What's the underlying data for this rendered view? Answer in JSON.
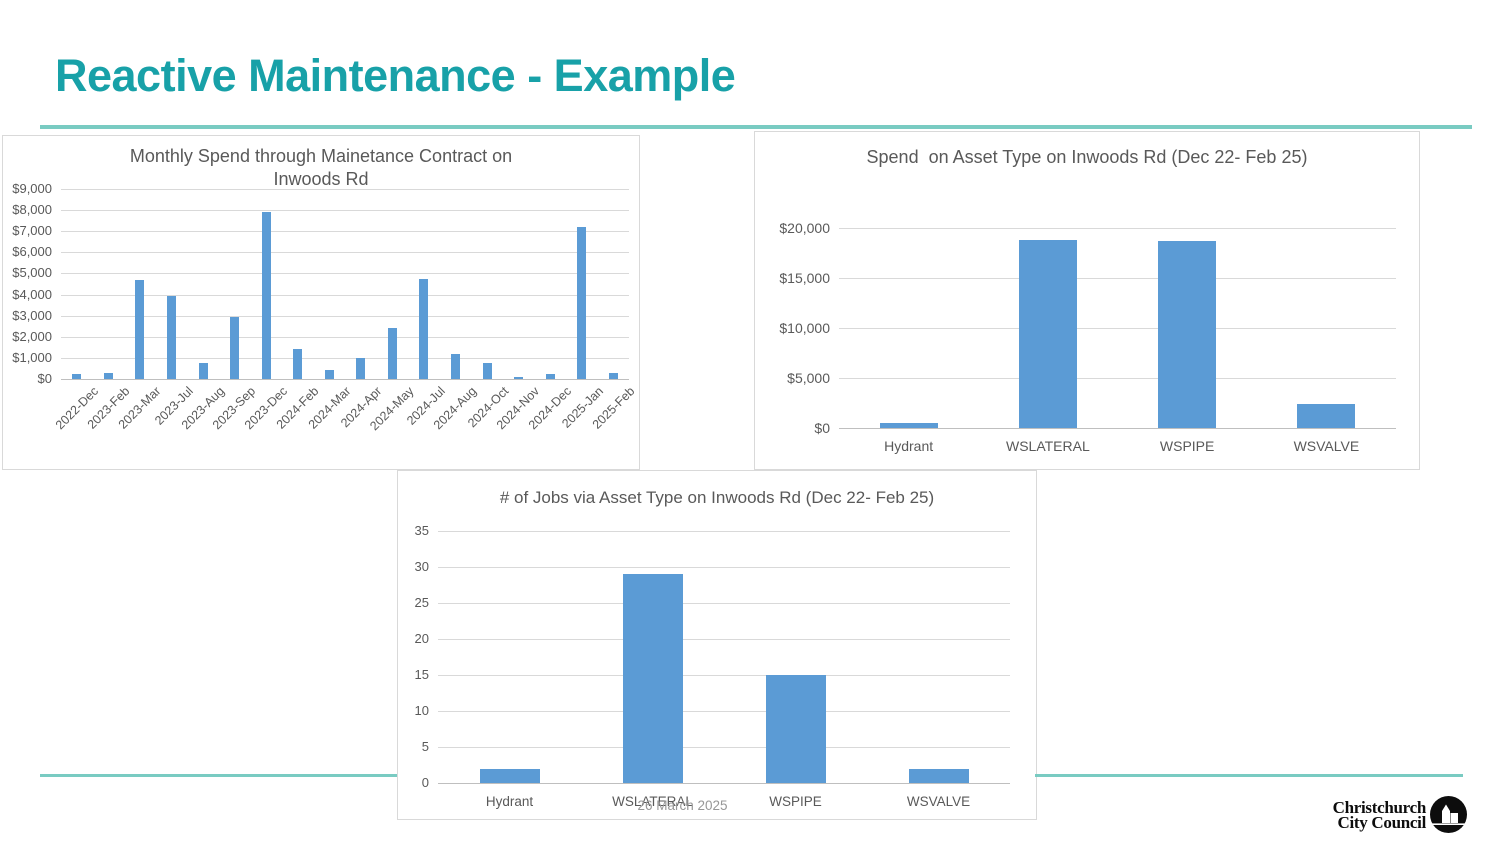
{
  "slide": {
    "title": "Reactive Maintenance - Example"
  },
  "footer": {
    "date": "26 March 2025"
  },
  "logo": {
    "line1": "Christchurch",
    "line2": "City Council"
  },
  "colors": {
    "accent_teal": "#18A1A8",
    "rule_teal": "#79CBC2",
    "bar_blue": "#5B9BD5",
    "chart_text": "#595959",
    "gridline": "#D9D9D9"
  },
  "chart_data": [
    {
      "type": "bar",
      "title": "Monthly Spend through Mainetance Contract on Inwoods Rd",
      "categories": [
        "2022-Dec",
        "2023-Feb",
        "2023-Mar",
        "2023-Jul",
        "2023-Aug",
        "2023-Sep",
        "2023-Dec",
        "2024-Feb",
        "2024-Mar",
        "2024-Apr",
        "2024-May",
        "2024-Jul",
        "2024-Aug",
        "2024-Oct",
        "2024-Nov",
        "2024-Dec",
        "2025-Jan",
        "2025-Feb"
      ],
      "values": [
        250,
        300,
        4700,
        3950,
        750,
        2950,
        7900,
        1400,
        450,
        1000,
        2400,
        4750,
        1200,
        750,
        100,
        250,
        7200,
        300
      ],
      "ymax": 9000,
      "yticks": [
        "$9,000",
        "$8,000",
        "$7,000",
        "$6,000",
        "$5,000",
        "$4,000",
        "$3,000",
        "$2,000",
        "$1,000",
        "$0"
      ],
      "xlabel": "",
      "ylabel": "",
      "grid": true,
      "legend": "none"
    },
    {
      "type": "bar",
      "title": "Spend  on Asset Type on Inwoods Rd (Dec 22- Feb 25)",
      "categories": [
        "Hydrant",
        "WSLATERAL",
        "WSPIPE",
        "WSVALVE"
      ],
      "values": [
        500,
        18800,
        18700,
        2400
      ],
      "ymax": 20000,
      "yticks": [
        "$20,000",
        "$15,000",
        "$10,000",
        "$5,000",
        "$0"
      ],
      "xlabel": "",
      "ylabel": "",
      "grid": true,
      "legend": "none"
    },
    {
      "type": "bar",
      "title": "# of Jobs via Asset Type on Inwoods Rd (Dec 22- Feb 25)",
      "categories": [
        "Hydrant",
        "WSLATERAL",
        "WSPIPE",
        "WSVALVE"
      ],
      "values": [
        2,
        29,
        15,
        2
      ],
      "ymax": 35,
      "yticks": [
        "35",
        "30",
        "25",
        "20",
        "15",
        "10",
        "5",
        "0"
      ],
      "xlabel": "",
      "ylabel": "",
      "grid": true,
      "legend": "none"
    }
  ]
}
